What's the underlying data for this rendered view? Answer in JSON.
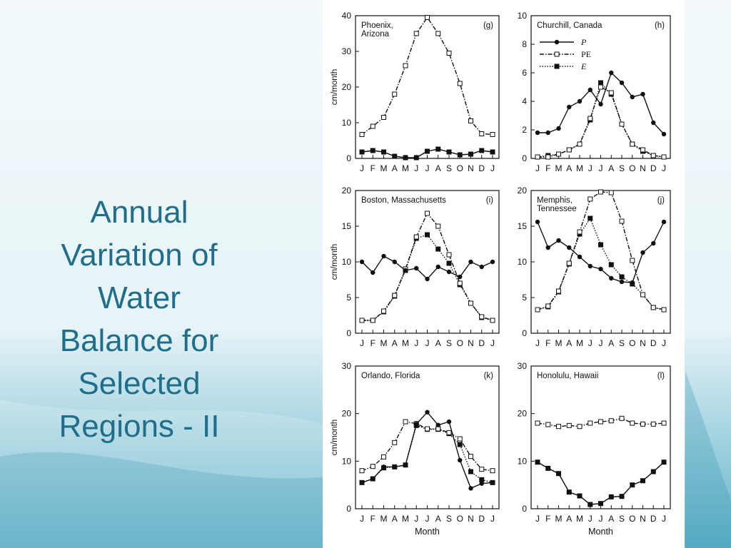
{
  "slide": {
    "title_lines": [
      "Annual",
      "Variation of",
      "Water",
      "Balance for",
      "Selected",
      "Regions - II"
    ],
    "colors": {
      "title": "#1f6f8b",
      "bg_top": "#f4fafc",
      "bg_bottom": "#5fb2c9"
    }
  },
  "chart_data": [
    {
      "type": "line",
      "title": "Phoenix,\nArizona",
      "panel_tag": "(g)",
      "categories": [
        "J",
        "F",
        "M",
        "A",
        "M",
        "J",
        "J",
        "A",
        "S",
        "O",
        "N",
        "D",
        "J"
      ],
      "ylabel": "cm/month",
      "xlabel": "",
      "ylim": [
        0,
        40
      ],
      "yticks": [
        0,
        10,
        20,
        30,
        40
      ],
      "series": [
        {
          "name": "P",
          "values": [
            1.8,
            2.2,
            1.8,
            0.6,
            0.2,
            0.2,
            2.0,
            2.6,
            1.8,
            1.0,
            1.2,
            2.2,
            1.8
          ]
        },
        {
          "name": "PE",
          "values": [
            6.7,
            9.0,
            11.5,
            18.0,
            26.0,
            35.0,
            39.5,
            35.0,
            29.5,
            21.0,
            10.5,
            6.9,
            6.7
          ]
        },
        {
          "name": "E",
          "values": [
            1.8,
            2.2,
            1.8,
            0.6,
            0.2,
            0.2,
            2.0,
            2.6,
            1.8,
            1.0,
            1.2,
            2.2,
            1.8
          ]
        }
      ]
    },
    {
      "type": "line",
      "title": "Churchill, Canada",
      "panel_tag": "(h)",
      "categories": [
        "J",
        "F",
        "M",
        "A",
        "M",
        "J",
        "J",
        "A",
        "S",
        "O",
        "N",
        "D",
        "J"
      ],
      "ylabel": "",
      "xlabel": "",
      "ylim": [
        0,
        10
      ],
      "yticks": [
        0,
        2,
        4,
        6,
        8,
        10
      ],
      "legend": {
        "entries": [
          "P",
          "PE",
          "E"
        ],
        "position": "top-left"
      },
      "series": [
        {
          "name": "P",
          "values": [
            1.8,
            1.8,
            2.1,
            3.6,
            4.0,
            4.8,
            3.8,
            6.0,
            5.3,
            4.3,
            4.5,
            2.5,
            1.7
          ]
        },
        {
          "name": "PE",
          "values": [
            0.1,
            0.1,
            0.3,
            0.6,
            1.0,
            2.8,
            5.0,
            4.6,
            2.4,
            1.0,
            0.6,
            0.2,
            0.1
          ]
        },
        {
          "name": "E",
          "values": [
            0.1,
            0.2,
            0.3,
            0.6,
            1.0,
            2.7,
            5.3,
            4.5,
            2.4,
            1.0,
            0.5,
            0.2,
            0.1
          ]
        }
      ]
    },
    {
      "type": "line",
      "title": "Boston, Massachusetts",
      "panel_tag": "(i)",
      "categories": [
        "J",
        "F",
        "M",
        "A",
        "M",
        "J",
        "J",
        "A",
        "S",
        "O",
        "N",
        "D",
        "J"
      ],
      "ylabel": "cm/month",
      "xlabel": "",
      "ylim": [
        0,
        20
      ],
      "yticks": [
        0,
        5,
        10,
        15,
        20
      ],
      "series": [
        {
          "name": "P",
          "values": [
            10.0,
            8.5,
            10.8,
            10.0,
            8.8,
            9.1,
            7.6,
            9.3,
            8.6,
            7.9,
            10.0,
            9.3,
            10.0
          ]
        },
        {
          "name": "PE",
          "values": [
            1.8,
            1.8,
            3.1,
            5.3,
            9.0,
            13.5,
            16.8,
            15.0,
            11.0,
            7.0,
            4.2,
            2.3,
            1.8
          ]
        },
        {
          "name": "E",
          "values": [
            1.8,
            1.8,
            3.0,
            5.2,
            8.8,
            13.3,
            13.8,
            11.8,
            9.8,
            6.8,
            4.2,
            2.2,
            1.8
          ]
        }
      ]
    },
    {
      "type": "line",
      "title": "Memphis,\nTennessee",
      "panel_tag": "(j)",
      "categories": [
        "J",
        "F",
        "M",
        "A",
        "M",
        "J",
        "J",
        "A",
        "S",
        "O",
        "N",
        "D",
        "J"
      ],
      "ylabel": "",
      "xlabel": "",
      "ylim": [
        0,
        20
      ],
      "yticks": [
        0,
        5,
        10,
        15,
        20
      ],
      "series": [
        {
          "name": "P",
          "values": [
            15.6,
            12.0,
            13.0,
            12.0,
            10.7,
            9.4,
            9.0,
            7.7,
            7.2,
            7.1,
            11.3,
            12.6,
            15.6
          ]
        },
        {
          "name": "PE",
          "values": [
            3.3,
            3.8,
            5.9,
            9.8,
            14.2,
            18.8,
            19.8,
            19.7,
            15.7,
            10.2,
            5.4,
            3.6,
            3.3
          ]
        },
        {
          "name": "E",
          "values": [
            3.3,
            3.7,
            5.8,
            9.7,
            13.9,
            16.1,
            12.4,
            9.6,
            7.9,
            6.9,
            5.4,
            3.6,
            3.3
          ]
        }
      ]
    },
    {
      "type": "line",
      "title": "Orlando, Florida",
      "panel_tag": "(k)",
      "categories": [
        "J",
        "F",
        "M",
        "A",
        "M",
        "J",
        "J",
        "A",
        "S",
        "O",
        "N",
        "D",
        "J"
      ],
      "ylabel": "cm/month",
      "xlabel": "Month",
      "ylim": [
        0,
        30
      ],
      "yticks": [
        0,
        10,
        20,
        30
      ],
      "series": [
        {
          "name": "P",
          "values": [
            5.5,
            6.3,
            8.8,
            8.8,
            9.2,
            17.8,
            20.3,
            17.6,
            18.3,
            10.2,
            4.3,
            5.3,
            5.5
          ]
        },
        {
          "name": "PE",
          "values": [
            8.0,
            8.9,
            10.9,
            13.9,
            18.3,
            17.9,
            16.8,
            16.8,
            16.0,
            14.7,
            11.0,
            8.3,
            8.0
          ]
        },
        {
          "name": "E",
          "values": [
            5.5,
            6.3,
            8.6,
            8.8,
            9.2,
            17.5,
            16.7,
            16.7,
            15.8,
            13.5,
            7.8,
            6.1,
            5.5
          ]
        }
      ]
    },
    {
      "type": "line",
      "title": "Honolulu, Hawaii",
      "panel_tag": "(l)",
      "categories": [
        "J",
        "F",
        "M",
        "A",
        "M",
        "J",
        "J",
        "A",
        "S",
        "O",
        "N",
        "D",
        "J"
      ],
      "ylabel": "",
      "xlabel": "Month",
      "ylim": [
        0,
        30
      ],
      "yticks": [
        0,
        10,
        20,
        30
      ],
      "series": [
        {
          "name": "P",
          "values": [
            9.8,
            8.5,
            7.4,
            3.5,
            2.7,
            0.9,
            1.1,
            2.5,
            2.6,
            5.0,
            5.9,
            7.8,
            9.8
          ]
        },
        {
          "name": "PE",
          "values": [
            18.0,
            17.7,
            17.3,
            17.5,
            17.3,
            18.0,
            18.3,
            18.5,
            19.0,
            18.0,
            17.8,
            17.8,
            18.0
          ]
        },
        {
          "name": "E",
          "values": [
            9.8,
            8.5,
            7.4,
            3.5,
            2.7,
            0.9,
            1.1,
            2.5,
            2.6,
            5.0,
            5.9,
            7.8,
            9.8
          ]
        }
      ]
    }
  ]
}
